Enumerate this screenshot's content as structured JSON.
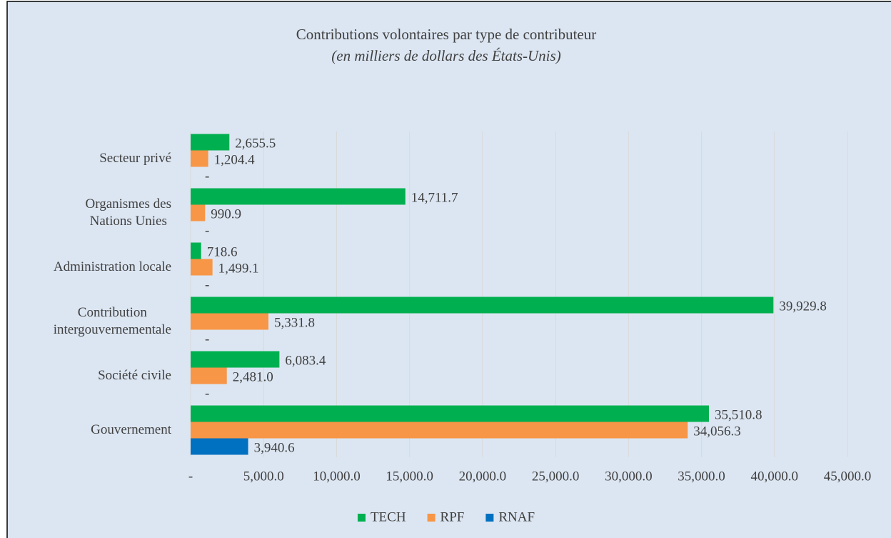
{
  "chart_data": {
    "type": "barh",
    "title": "Contributions volontaires par type de contributeur",
    "subtitle": "(en milliers de dollars des États-Unis)",
    "categories": [
      "Secteur privé",
      "Organismes des\nNations Unies",
      "Administration locale",
      "Contribution\nintergouvernementale",
      "Société civile",
      "Gouvernement"
    ],
    "series": [
      {
        "name": "TECH",
        "color": "#00b050",
        "values": [
          2655.5,
          14711.7,
          718.6,
          39929.8,
          6083.4,
          35510.8
        ],
        "value_labels": [
          "2,655.5",
          "14,711.7",
          "718.6",
          "39,929.8",
          "6,083.4",
          "35,510.8"
        ]
      },
      {
        "name": "RPF",
        "color": "#f79646",
        "values": [
          1204.4,
          990.9,
          1499.1,
          5331.8,
          2481.0,
          34056.3
        ],
        "value_labels": [
          "1,204.4",
          "990.9",
          "1,499.1",
          "5,331.8",
          "2,481.0",
          "34,056.3"
        ]
      },
      {
        "name": "RNAF",
        "color": "#0070c0",
        "values": [
          0,
          0,
          0,
          0,
          0,
          3940.6
        ],
        "value_labels": [
          "-",
          "-",
          "-",
          "-",
          "-",
          "3,940.6"
        ]
      }
    ],
    "xlim": [
      0,
      45000
    ],
    "xticks": [
      {
        "value": 0,
        "label": "-"
      },
      {
        "value": 5000,
        "label": "5,000.0"
      },
      {
        "value": 10000,
        "label": "10,000.0"
      },
      {
        "value": 15000,
        "label": "15,000.0"
      },
      {
        "value": 20000,
        "label": "20,000.0"
      },
      {
        "value": 25000,
        "label": "25,000.0"
      },
      {
        "value": 30000,
        "label": "30,000.0"
      },
      {
        "value": 35000,
        "label": "35,000.0"
      },
      {
        "value": 40000,
        "label": "40,000.0"
      },
      {
        "value": 45000,
        "label": "45,000.0"
      }
    ],
    "grid": true,
    "legend": "bottom"
  }
}
